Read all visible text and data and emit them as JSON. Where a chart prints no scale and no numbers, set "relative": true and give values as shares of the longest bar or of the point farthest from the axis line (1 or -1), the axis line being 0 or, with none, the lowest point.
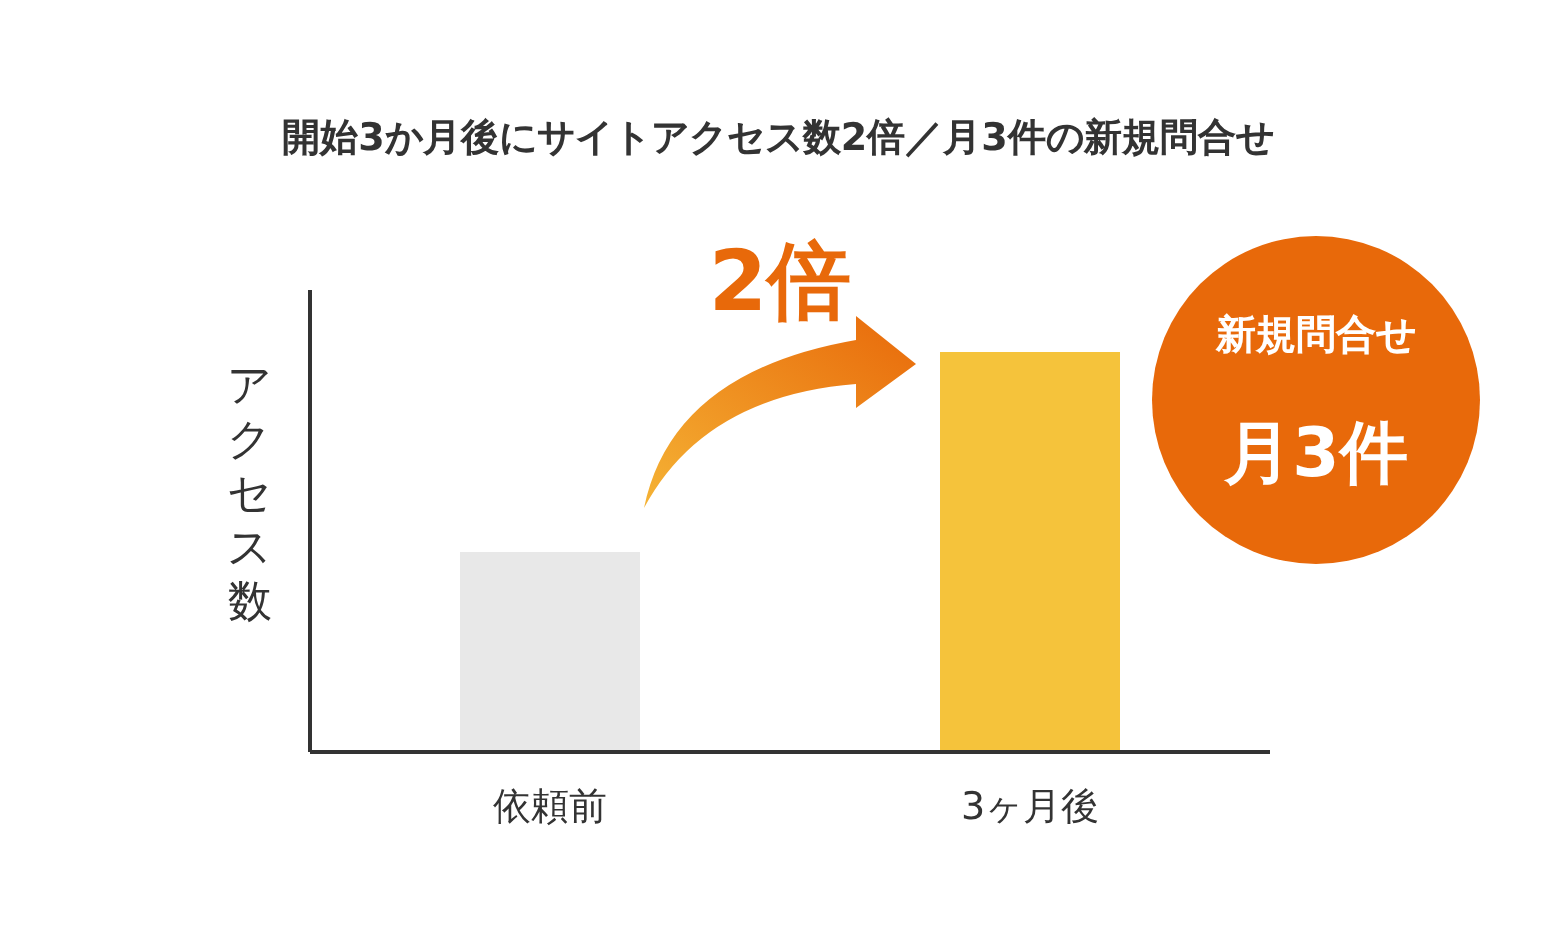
{
  "chart_data": {
    "type": "bar",
    "title": "開始3か月後にサイトアクセス数2倍／月3件の新規問合せ",
    "ylabel": "アクセス数",
    "categories": [
      "依頼前",
      "3ヶ月後"
    ],
    "values": [
      0.5,
      1
    ],
    "colors": [
      "#e8e8e8",
      "#f5c33b"
    ],
    "relative": true,
    "grid": false,
    "legend": false,
    "annotations": [
      "2倍",
      "新規問合せ",
      "月3件"
    ]
  }
}
